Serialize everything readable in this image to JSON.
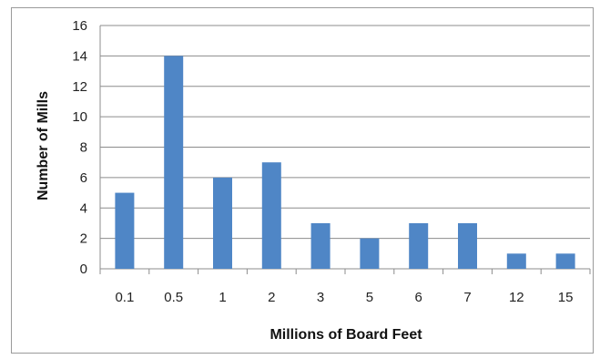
{
  "chart_data": {
    "type": "bar",
    "title": "",
    "xlabel": "Millions of Board Feet",
    "ylabel": "Number of Mills",
    "categories": [
      "0.1",
      "0.5",
      "1",
      "2",
      "3",
      "5",
      "6",
      "7",
      "12",
      "15"
    ],
    "values": [
      5,
      14,
      6,
      7,
      3,
      2,
      3,
      3,
      1,
      1
    ],
    "ylim": [
      0,
      16
    ],
    "yticks": [
      "0",
      "2",
      "4",
      "6",
      "8",
      "10",
      "12",
      "14",
      "16"
    ],
    "grid": "horizontal",
    "legend": "none",
    "bar_color": "#4f86c6",
    "grid_color": "#8c8c8c"
  }
}
